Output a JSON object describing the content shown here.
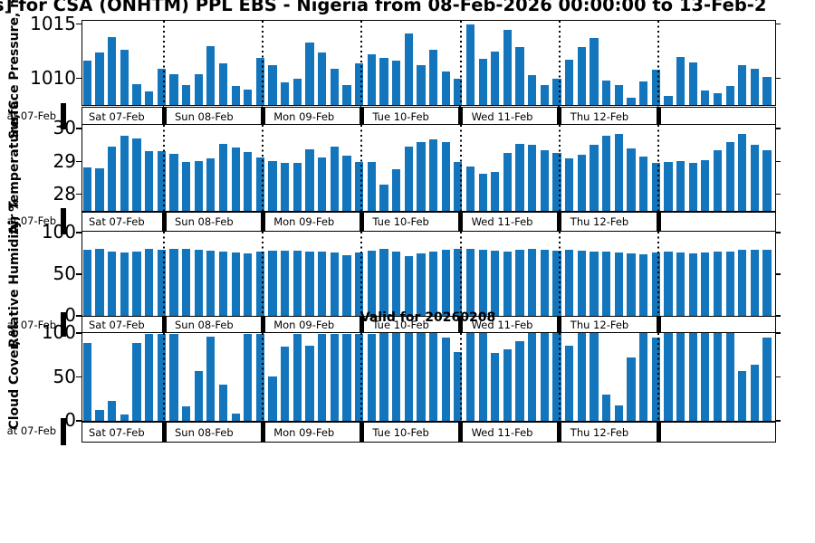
{
  "title": "s] for CSA (ONHTM) PPL EBS  - Nigeria from 08-Feb-2026 00:00:00 to 13-Feb-2",
  "annotation": "Valid for 20260208",
  "colors": {
    "bar": "#1375bc",
    "axis": "#000000",
    "background": "#ffffff"
  },
  "x_axis": {
    "day_labels": [
      "Sat 07-Feb",
      "Sun 08-Feb",
      "Mon 09-Feb",
      "Tue 10-Feb",
      "Wed 11-Feb",
      "Thu 12-Feb"
    ],
    "left_clipped_label": "at 07-Feb",
    "bars_per_day": [
      7,
      8,
      8,
      8,
      8,
      8,
      9
    ],
    "interval_hours": 3
  },
  "chart_data": [
    {
      "type": "bar",
      "ylabel": "Surface Pressure, mb",
      "yticks": [
        1015,
        1010
      ],
      "ylim": [
        1007.55,
        1015.3
      ],
      "values": [
        1011.6,
        1012.4,
        1013.8,
        1012.6,
        1009.5,
        1008.8,
        1010.9,
        1010.4,
        1009.4,
        1010.4,
        1013.0,
        1011.4,
        1009.3,
        1009.0,
        1011.9,
        1011.2,
        1009.6,
        1010.0,
        1013.3,
        1012.4,
        1010.9,
        1009.4,
        1011.4,
        1012.2,
        1011.9,
        1011.6,
        1014.1,
        1011.2,
        1012.6,
        1010.6,
        1010.0,
        1015.0,
        1011.8,
        1012.5,
        1014.5,
        1012.9,
        1010.3,
        1009.4,
        1010.0,
        1011.7,
        1012.9,
        1013.7,
        1009.8,
        1009.4,
        1008.2,
        1009.7,
        1010.8,
        1008.4,
        1012.0,
        1011.5,
        1008.9,
        1008.6,
        1009.3,
        1011.2,
        1010.9,
        1010.1
      ]
    },
    {
      "type": "bar",
      "ylabel": "Air Temperature, C",
      "yticks": [
        30,
        29,
        28
      ],
      "ylim": [
        27.5,
        30.12
      ],
      "values": [
        28.82,
        28.79,
        29.46,
        29.78,
        29.71,
        29.32,
        29.32,
        29.25,
        28.99,
        29.03,
        29.1,
        29.55,
        29.44,
        29.29,
        29.12,
        29.03,
        28.97,
        28.95,
        29.37,
        29.12,
        29.47,
        29.18,
        29.0,
        28.99,
        28.3,
        28.76,
        29.46,
        29.6,
        29.68,
        29.6,
        29.0,
        28.85,
        28.63,
        28.7,
        29.27,
        29.53,
        29.5,
        29.34,
        29.27,
        29.1,
        29.2,
        29.5,
        29.8,
        29.85,
        29.4,
        29.15,
        28.97,
        29.0,
        29.02,
        28.95,
        29.05,
        29.35,
        29.6,
        29.85,
        29.5,
        29.35
      ]
    },
    {
      "type": "bar",
      "ylabel": "Relative Humidity, %",
      "yticks": [
        100,
        50,
        0
      ],
      "ylim": [
        0,
        101.5
      ],
      "values": [
        80,
        81,
        78,
        76,
        77,
        81,
        80,
        81,
        81,
        80,
        79,
        78,
        76,
        75,
        77,
        79,
        79,
        79,
        78,
        77,
        76,
        73,
        76,
        79,
        81,
        77,
        72,
        75,
        78,
        80,
        81,
        81,
        80,
        79,
        78,
        80,
        81,
        80,
        79,
        80,
        79,
        78,
        77,
        76,
        75,
        74,
        76,
        77,
        76,
        75,
        76,
        77,
        78,
        80,
        80,
        80
      ]
    },
    {
      "type": "bar",
      "ylabel": "Cloud Cover, %",
      "yticks": [
        100,
        50,
        0
      ],
      "ylim": [
        0,
        100
      ],
      "values": [
        89,
        12,
        23,
        7,
        89,
        99,
        99,
        99,
        16,
        57,
        96,
        41,
        8,
        99,
        99,
        51,
        85,
        99,
        86,
        99,
        99,
        99,
        99,
        99,
        100,
        100,
        100,
        100,
        100,
        95,
        78,
        100,
        100,
        77,
        81,
        91,
        100,
        100,
        100,
        86,
        100,
        100,
        30,
        18,
        72,
        100,
        95,
        100,
        100,
        100,
        100,
        100,
        100,
        57,
        64,
        95
      ]
    }
  ]
}
